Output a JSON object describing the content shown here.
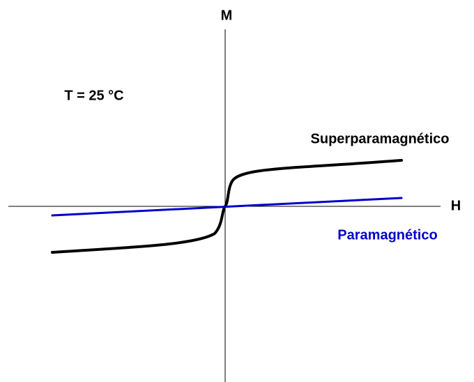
{
  "axes": {
    "y_label": "M",
    "x_label": "H"
  },
  "annotation": "T = 25 °C",
  "curves": [
    {
      "label": "Superparamagnético",
      "color": "#000000"
    },
    {
      "label": "Paramagnético",
      "color": "#0000cc"
    }
  ]
}
